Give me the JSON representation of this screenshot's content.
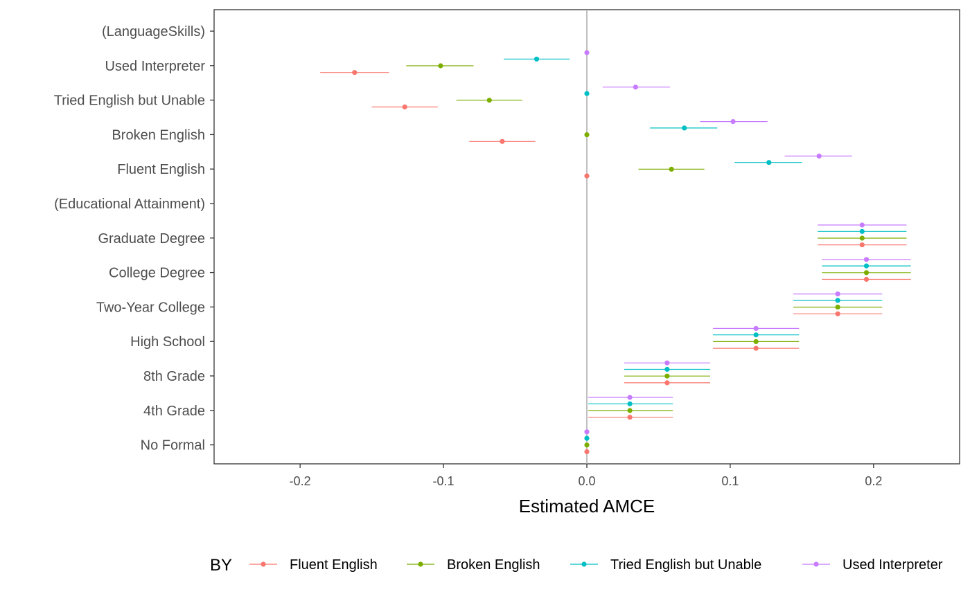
{
  "chart_data": {
    "type": "scatter",
    "xlabel": "Estimated AMCE",
    "xlim": [
      -0.26,
      0.26
    ],
    "x_ticks": [
      {
        "value": -0.2,
        "label": "-0.2"
      },
      {
        "value": -0.1,
        "label": "-0.1"
      },
      {
        "value": 0.0,
        "label": "0.0"
      },
      {
        "value": 0.1,
        "label": "0.1"
      },
      {
        "value": 0.2,
        "label": "0.2"
      }
    ],
    "reference_line_x": 0.0,
    "grid": false,
    "categories": [
      "(LanguageSkills)",
      "Used Interpreter",
      "Tried English but Unable",
      "Broken English",
      "Fluent English",
      "(Educational Attainment)",
      "Graduate Degree",
      "College Degree",
      "Two-Year College",
      "High School",
      "8th Grade",
      "4th Grade",
      "No Formal"
    ],
    "legend": {
      "title": "BY",
      "position": "bottom"
    },
    "series": [
      {
        "name": "Fluent English",
        "color": "#F8766D",
        "points": [
          {
            "category": "Used Interpreter",
            "estimate": -0.162,
            "lower": -0.186,
            "upper": -0.138
          },
          {
            "category": "Tried English but Unable",
            "estimate": -0.127,
            "lower": -0.15,
            "upper": -0.104
          },
          {
            "category": "Broken English",
            "estimate": -0.059,
            "lower": -0.082,
            "upper": -0.036
          },
          {
            "category": "Fluent English",
            "estimate": 0.0,
            "lower": 0.0,
            "upper": 0.0
          },
          {
            "category": "Graduate Degree",
            "estimate": 0.192,
            "lower": 0.161,
            "upper": 0.223
          },
          {
            "category": "College Degree",
            "estimate": 0.195,
            "lower": 0.164,
            "upper": 0.226
          },
          {
            "category": "Two-Year College",
            "estimate": 0.175,
            "lower": 0.144,
            "upper": 0.206
          },
          {
            "category": "High School",
            "estimate": 0.118,
            "lower": 0.088,
            "upper": 0.148
          },
          {
            "category": "8th Grade",
            "estimate": 0.056,
            "lower": 0.026,
            "upper": 0.086
          },
          {
            "category": "4th Grade",
            "estimate": 0.03,
            "lower": 0.001,
            "upper": 0.06
          },
          {
            "category": "No Formal",
            "estimate": 0.0,
            "lower": 0.0,
            "upper": 0.0
          }
        ]
      },
      {
        "name": "Broken English",
        "color": "#7CAE00",
        "points": [
          {
            "category": "Used Interpreter",
            "estimate": -0.102,
            "lower": -0.126,
            "upper": -0.079
          },
          {
            "category": "Tried English but Unable",
            "estimate": -0.068,
            "lower": -0.091,
            "upper": -0.045
          },
          {
            "category": "Broken English",
            "estimate": 0.0,
            "lower": 0.0,
            "upper": 0.0
          },
          {
            "category": "Fluent English",
            "estimate": 0.059,
            "lower": 0.036,
            "upper": 0.082
          },
          {
            "category": "Graduate Degree",
            "estimate": 0.192,
            "lower": 0.161,
            "upper": 0.223
          },
          {
            "category": "College Degree",
            "estimate": 0.195,
            "lower": 0.164,
            "upper": 0.226
          },
          {
            "category": "Two-Year College",
            "estimate": 0.175,
            "lower": 0.144,
            "upper": 0.206
          },
          {
            "category": "High School",
            "estimate": 0.118,
            "lower": 0.088,
            "upper": 0.148
          },
          {
            "category": "8th Grade",
            "estimate": 0.056,
            "lower": 0.026,
            "upper": 0.086
          },
          {
            "category": "4th Grade",
            "estimate": 0.03,
            "lower": 0.001,
            "upper": 0.06
          },
          {
            "category": "No Formal",
            "estimate": 0.0,
            "lower": 0.0,
            "upper": 0.0
          }
        ]
      },
      {
        "name": "Tried English but Unable",
        "color": "#00BFC4",
        "points": [
          {
            "category": "Used Interpreter",
            "estimate": -0.035,
            "lower": -0.058,
            "upper": -0.012
          },
          {
            "category": "Tried English but Unable",
            "estimate": 0.0,
            "lower": 0.0,
            "upper": 0.0
          },
          {
            "category": "Broken English",
            "estimate": 0.068,
            "lower": 0.044,
            "upper": 0.091
          },
          {
            "category": "Fluent English",
            "estimate": 0.127,
            "lower": 0.103,
            "upper": 0.15
          },
          {
            "category": "Graduate Degree",
            "estimate": 0.192,
            "lower": 0.161,
            "upper": 0.223
          },
          {
            "category": "College Degree",
            "estimate": 0.195,
            "lower": 0.164,
            "upper": 0.226
          },
          {
            "category": "Two-Year College",
            "estimate": 0.175,
            "lower": 0.144,
            "upper": 0.206
          },
          {
            "category": "High School",
            "estimate": 0.118,
            "lower": 0.088,
            "upper": 0.148
          },
          {
            "category": "8th Grade",
            "estimate": 0.056,
            "lower": 0.026,
            "upper": 0.086
          },
          {
            "category": "4th Grade",
            "estimate": 0.03,
            "lower": 0.001,
            "upper": 0.06
          },
          {
            "category": "No Formal",
            "estimate": 0.0,
            "lower": 0.0,
            "upper": 0.0
          }
        ]
      },
      {
        "name": "Used Interpreter",
        "color": "#C77CFF",
        "points": [
          {
            "category": "Used Interpreter",
            "estimate": 0.0,
            "lower": 0.0,
            "upper": 0.0
          },
          {
            "category": "Tried English but Unable",
            "estimate": 0.034,
            "lower": 0.011,
            "upper": 0.058
          },
          {
            "category": "Broken English",
            "estimate": 0.102,
            "lower": 0.079,
            "upper": 0.126
          },
          {
            "category": "Fluent English",
            "estimate": 0.162,
            "lower": 0.138,
            "upper": 0.185
          },
          {
            "category": "Graduate Degree",
            "estimate": 0.192,
            "lower": 0.161,
            "upper": 0.223
          },
          {
            "category": "College Degree",
            "estimate": 0.195,
            "lower": 0.164,
            "upper": 0.226
          },
          {
            "category": "Two-Year College",
            "estimate": 0.175,
            "lower": 0.144,
            "upper": 0.206
          },
          {
            "category": "High School",
            "estimate": 0.118,
            "lower": 0.088,
            "upper": 0.148
          },
          {
            "category": "8th Grade",
            "estimate": 0.056,
            "lower": 0.026,
            "upper": 0.086
          },
          {
            "category": "4th Grade",
            "estimate": 0.03,
            "lower": 0.001,
            "upper": 0.06
          },
          {
            "category": "No Formal",
            "estimate": 0.0,
            "lower": 0.0,
            "upper": 0.0
          }
        ]
      }
    ]
  }
}
